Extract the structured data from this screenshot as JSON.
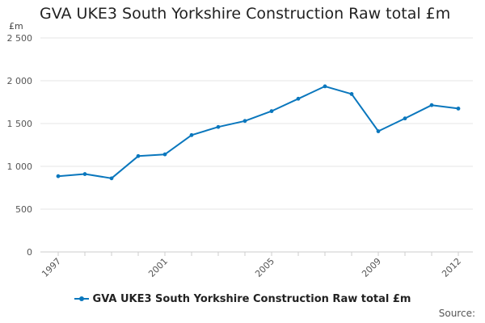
{
  "chart_data": {
    "type": "line",
    "title": "GVA UKE3 South Yorkshire Construction Raw total £m",
    "unit_label": "£m",
    "x": [
      "1997",
      "1998",
      "1999",
      "2000",
      "2001",
      "2002",
      "2003",
      "2004",
      "2005",
      "2006",
      "2007",
      "2008",
      "2009",
      "2010",
      "2011",
      "2012"
    ],
    "x_tick_labels": [
      "1997",
      "2001",
      "2005",
      "2009",
      "2012"
    ],
    "y_ticks": [
      0,
      500,
      1000,
      1500,
      2000,
      2500
    ],
    "y_tick_labels": [
      "0",
      "500",
      "1 000",
      "1 500",
      "2 000",
      "2 500"
    ],
    "ylim": [
      0,
      2500
    ],
    "grid": true,
    "legend_position": "bottom",
    "series": [
      {
        "name": "GVA UKE3 South Yorkshire Construction Raw total £m",
        "color": "#0a77bd",
        "values": [
          885,
          910,
          860,
          1120,
          1140,
          1365,
          1460,
          1530,
          1645,
          1790,
          1935,
          1845,
          1410,
          1560,
          1715,
          1675
        ]
      }
    ],
    "source_label": "Source:"
  }
}
